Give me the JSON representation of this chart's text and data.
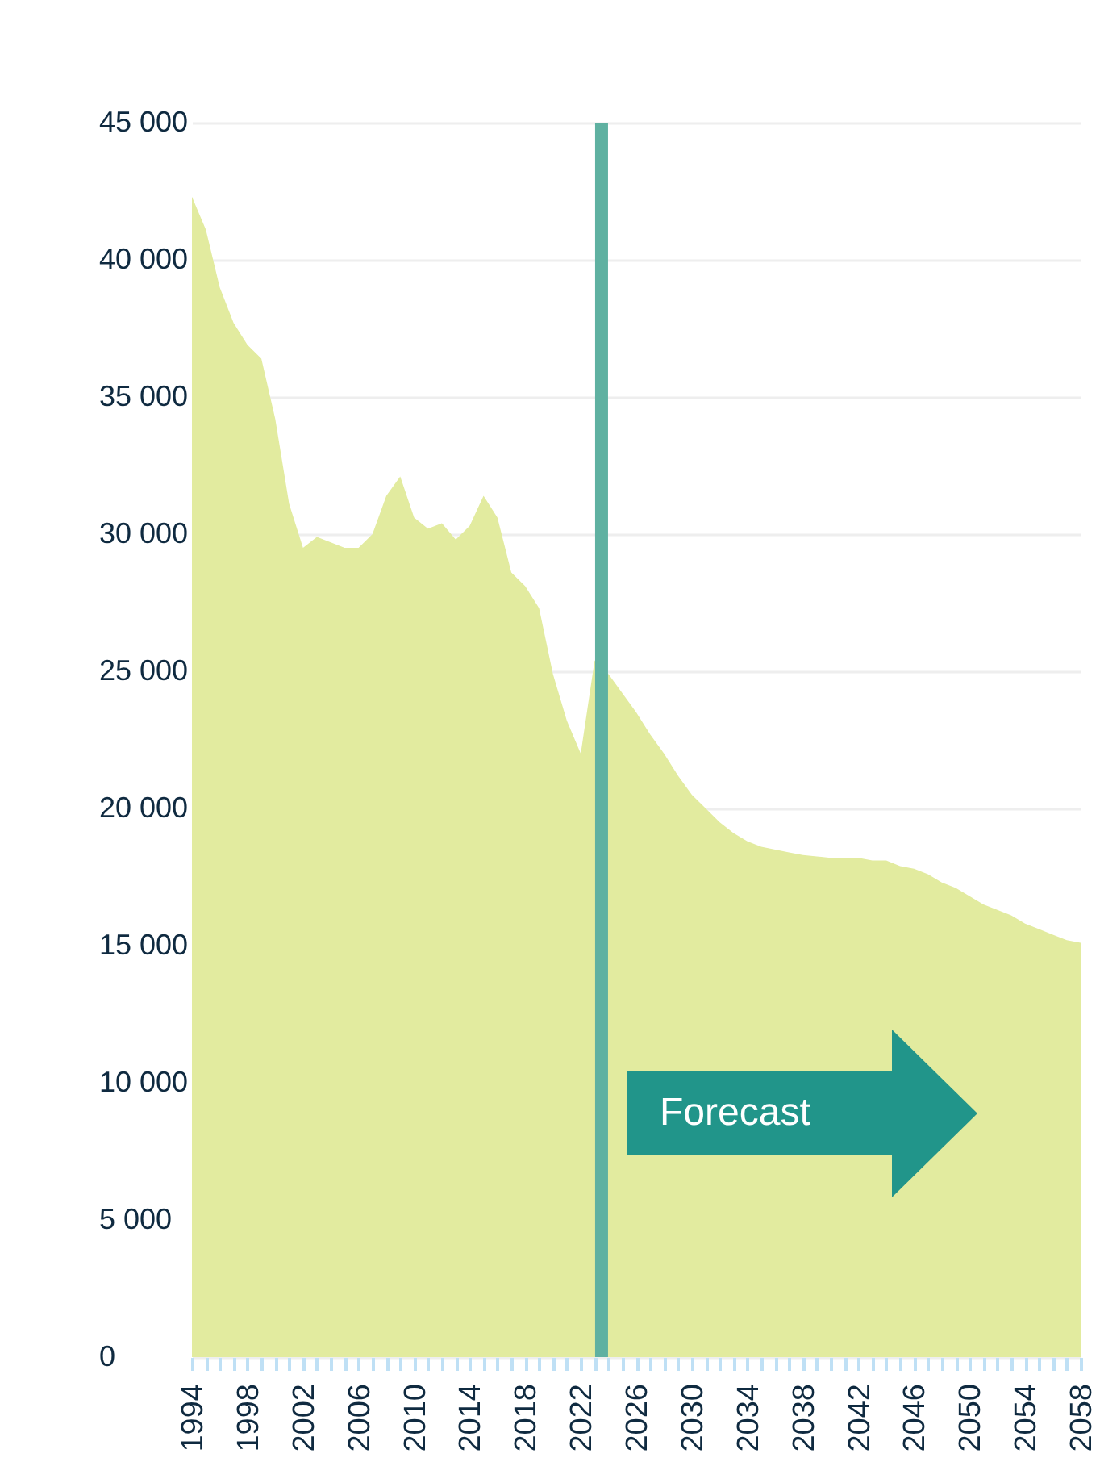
{
  "chart_data": {
    "type": "area",
    "x": [
      1994,
      1995,
      1996,
      1997,
      1998,
      1999,
      2000,
      2001,
      2002,
      2003,
      2004,
      2005,
      2006,
      2007,
      2008,
      2009,
      2010,
      2011,
      2012,
      2013,
      2014,
      2015,
      2016,
      2017,
      2018,
      2019,
      2020,
      2021,
      2022,
      2023,
      2024,
      2025,
      2026,
      2027,
      2028,
      2029,
      2030,
      2031,
      2032,
      2033,
      2034,
      2035,
      2036,
      2037,
      2038,
      2039,
      2040,
      2041,
      2042,
      2043,
      2044,
      2045,
      2046,
      2047,
      2048,
      2049,
      2050,
      2051,
      2052,
      2053,
      2054,
      2055,
      2056,
      2057,
      2058
    ],
    "series": [
      {
        "color": "#e2eb9f",
        "values": [
          42300,
          41100,
          39000,
          37700,
          36900,
          36400,
          34200,
          31100,
          29500,
          29900,
          29700,
          29500,
          29500,
          30000,
          31400,
          32100,
          30600,
          30200,
          30400,
          29800,
          30300,
          31400,
          30600,
          28600,
          28100,
          27300,
          24900,
          23200,
          22000,
          25400,
          24900,
          24200,
          23500,
          22700,
          22000,
          21200,
          20500,
          20000,
          19500,
          19100,
          18800,
          18600,
          18500,
          18400,
          18300,
          18250,
          18200,
          18200,
          18200,
          18100,
          18100,
          17900,
          17800,
          17600,
          17300,
          17100,
          16800,
          16500,
          16300,
          16100,
          15800,
          15600,
          15400,
          15200,
          15100
        ]
      }
    ],
    "xlim": [
      1994,
      2058
    ],
    "xticks": [
      1994,
      {
        "value": 1995,
        "label": null
      },
      {
        "value": 1996,
        "label": null
      },
      {
        "value": 1997,
        "label": null
      },
      1998,
      {
        "value": 1999,
        "label": null
      },
      {
        "value": 2000,
        "label": null
      },
      {
        "value": 2001,
        "label": null
      },
      2002,
      {
        "value": 2003,
        "label": null
      },
      {
        "value": 2004,
        "label": null
      },
      {
        "value": 2005,
        "label": null
      },
      2006,
      {
        "value": 2007,
        "label": null
      },
      {
        "value": 2008,
        "label": null
      },
      {
        "value": 2009,
        "label": null
      },
      2010,
      {
        "value": 2011,
        "label": null
      },
      {
        "value": 2012,
        "label": null
      },
      {
        "value": 2013,
        "label": null
      },
      2014,
      {
        "value": 2015,
        "label": null
      },
      {
        "value": 2016,
        "label": null
      },
      {
        "value": 2017,
        "label": null
      },
      2018,
      {
        "value": 2019,
        "label": null
      },
      {
        "value": 2020,
        "label": null
      },
      {
        "value": 2021,
        "label": null
      },
      2022,
      {
        "value": 2023,
        "label": null
      },
      {
        "value": 2024,
        "label": null
      },
      {
        "value": 2025,
        "label": null
      },
      2026,
      {
        "value": 2027,
        "label": null
      },
      {
        "value": 2028,
        "label": null
      },
      {
        "value": 2029,
        "label": null
      },
      2030,
      {
        "value": 2031,
        "label": null
      },
      {
        "value": 2032,
        "label": null
      },
      {
        "value": 2033,
        "label": null
      },
      2034,
      {
        "value": 2035,
        "label": null
      },
      {
        "value": 2036,
        "label": null
      },
      {
        "value": 2037,
        "label": null
      },
      2038,
      {
        "value": 2039,
        "label": null
      },
      {
        "value": 2040,
        "label": null
      },
      {
        "value": 2041,
        "label": null
      },
      2042,
      {
        "value": 2043,
        "label": null
      },
      {
        "value": 2044,
        "label": null
      },
      {
        "value": 2045,
        "label": null
      },
      2046,
      {
        "value": 2047,
        "label": null
      },
      {
        "value": 2048,
        "label": null
      },
      {
        "value": 2049,
        "label": null
      },
      2050,
      {
        "value": 2051,
        "label": null
      },
      {
        "value": 2052,
        "label": null
      },
      {
        "value": 2053,
        "label": null
      },
      2054,
      {
        "value": 2055,
        "label": null
      },
      {
        "value": 2056,
        "label": null
      },
      {
        "value": 2057,
        "label": null
      },
      2058
    ],
    "ylim": [
      0,
      45000
    ],
    "yticks": [
      0,
      {
        "value": 5000,
        "label": "5 000"
      },
      {
        "value": 10000,
        "label": "10 000"
      },
      {
        "value": 15000,
        "label": "15 000"
      },
      {
        "value": 20000,
        "label": "20 000"
      },
      {
        "value": 25000,
        "label": "25 000"
      },
      {
        "value": 30000,
        "label": "30 000"
      },
      {
        "value": 35000,
        "label": "35 000"
      },
      {
        "value": 40000,
        "label": "40 000"
      },
      {
        "value": 45000,
        "label": "45 000"
      }
    ],
    "grid": "y",
    "ref_lines": [
      {
        "axis": "x",
        "value": 2023.5,
        "color": "#5fb1a1"
      }
    ],
    "annotations": [
      "Forecast"
    ]
  }
}
